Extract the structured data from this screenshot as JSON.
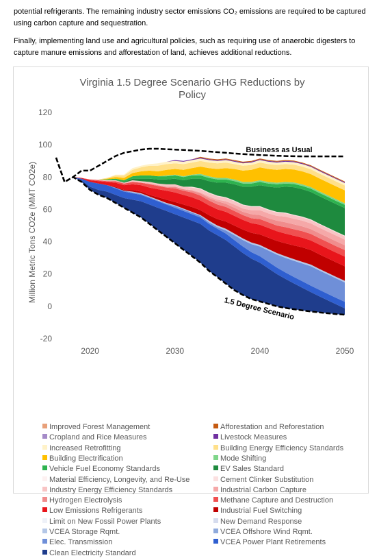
{
  "text": {
    "paragraph1": "potential refrigerants. The remaining industry sector emissions CO₂ emissions are required to be captured using carbon capture and sequestration.",
    "paragraph2": "Finally, implementing land use and agricultural policies, such as requiring use of anaerobic digesters to capture manure emissions and afforestation of land, achieves additional reductions."
  },
  "chart_data": {
    "type": "area",
    "title": "Virginia 1.5 Degree Scenario GHG Reductions by Policy",
    "ylabel": "Million Metric Tons CO2e (MMT CO2e)",
    "xlabel": "",
    "xlim": [
      2016,
      2050
    ],
    "ylim": [
      -20,
      120
    ],
    "xticks": [
      "2020",
      "2030",
      "2040",
      "2050"
    ],
    "yticks": [
      "120",
      "100",
      "80",
      "60",
      "40",
      "20",
      "0",
      "-20"
    ],
    "grid": false,
    "legend_position": "bottom",
    "annotations": [
      "Business as Usual",
      "1.5 Degree Scenario"
    ],
    "x": [
      2016,
      2017,
      2018,
      2019,
      2020,
      2021,
      2022,
      2023,
      2024,
      2025,
      2026,
      2027,
      2028,
      2029,
      2030,
      2031,
      2032,
      2033,
      2034,
      2035,
      2036,
      2037,
      2038,
      2039,
      2040,
      2041,
      2042,
      2043,
      2044,
      2045,
      2046,
      2047,
      2048,
      2049,
      2050
    ],
    "business_as_usual": [
      92,
      77,
      80,
      84,
      84,
      87,
      90,
      93,
      95,
      96,
      97,
      97.5,
      97.5,
      97.2,
      97,
      96.8,
      96.5,
      96.2,
      95.8,
      95.4,
      95,
      94.6,
      94.2,
      93.9,
      93.6,
      93.4,
      93.2,
      93,
      92.9,
      92.8,
      92.8,
      92.8,
      92.8,
      92.8,
      92.8
    ],
    "scenario_1_5_degree": [
      92,
      77,
      80,
      77,
      72,
      69,
      67,
      64,
      61,
      58,
      55,
      51,
      47,
      43,
      39,
      35,
      31,
      27,
      22,
      18,
      14,
      10,
      7,
      4.5,
      3,
      1.5,
      0,
      -1,
      -1.8,
      -2.5,
      -3.2,
      -3.8,
      -4.3,
      -4.8,
      -5.2
    ],
    "series": [
      {
        "name": "Clean Electricity Standard",
        "color": "#1f3d8c",
        "values": [
          0,
          0,
          0,
          1,
          2,
          3,
          4,
          5,
          6,
          8,
          10,
          12,
          14,
          16,
          18,
          20,
          22,
          24,
          25,
          26,
          27,
          27,
          26,
          25,
          24,
          22,
          20,
          18,
          16,
          14,
          12,
          10,
          8,
          6,
          4
        ]
      },
      {
        "name": "VCEA Power Plant Retirements",
        "color": "#2f5fd0",
        "values": [
          0,
          0,
          0,
          1,
          3,
          4,
          4,
          4,
          4,
          4,
          4,
          4,
          4,
          4,
          4,
          4,
          4,
          4,
          4,
          4,
          4,
          4,
          4,
          4,
          4,
          4,
          4,
          4,
          4,
          4,
          4,
          4,
          4,
          4,
          4
        ]
      },
      {
        "name": "Elec. Transmission",
        "color": "#6f8fd8",
        "values": [
          0,
          0,
          0,
          0,
          0,
          0,
          0,
          0.5,
          0.5,
          0.5,
          0.5,
          0.5,
          0.5,
          0.5,
          1,
          1,
          1,
          1,
          1,
          1,
          2,
          3,
          4,
          5,
          6,
          7,
          8,
          9,
          10,
          11,
          12,
          12,
          12,
          12,
          12
        ]
      },
      {
        "name": "VCEA Offshore Wind Rqmt.",
        "color": "#8faadc",
        "values": [
          0,
          0,
          0,
          0,
          0,
          0,
          0,
          0,
          0,
          0,
          0,
          0,
          0,
          0,
          0,
          0,
          0,
          0,
          0,
          0,
          0,
          0,
          0,
          0,
          0,
          0,
          0,
          0,
          0,
          0,
          0,
          0,
          0,
          0,
          0
        ]
      },
      {
        "name": "VCEA Storage Rqmt.",
        "color": "#b4c7e7",
        "values": [
          0,
          0,
          0,
          0,
          0,
          0,
          0,
          0,
          0,
          0.5,
          0.5,
          0.5,
          0.5,
          0.5,
          0.5,
          0.5,
          0.5,
          0.5,
          1,
          1,
          1,
          1,
          1,
          1,
          1,
          1,
          1,
          1,
          1,
          1,
          1,
          1,
          1,
          1,
          1
        ]
      },
      {
        "name": "New Demand Response",
        "color": "#d6dcee",
        "values": [
          0,
          0,
          0,
          0,
          0,
          0,
          0,
          0,
          0,
          0,
          0,
          0,
          0,
          0,
          0,
          0,
          0,
          0,
          0,
          0,
          0,
          0,
          0,
          0,
          0,
          0,
          0,
          0,
          0,
          0,
          0,
          0,
          0,
          0,
          0
        ]
      },
      {
        "name": "Limit on New Fossil Power Plants",
        "color": "#eef1f8",
        "values": [
          0,
          0,
          0,
          0,
          0,
          0,
          0,
          0,
          0,
          0,
          0,
          0,
          0,
          0,
          0,
          0,
          0,
          0,
          0,
          0,
          0,
          0,
          0,
          0,
          0,
          0,
          0,
          0,
          0,
          0,
          0,
          0,
          0,
          0,
          0
        ]
      },
      {
        "name": "Industrial Fuel Switching",
        "color": "#c00000",
        "values": [
          0,
          0,
          0,
          0,
          0,
          0,
          0,
          0.5,
          0.5,
          1,
          1,
          1,
          1.5,
          2,
          2,
          2.5,
          3,
          3,
          3.5,
          4,
          4.5,
          5,
          5.5,
          6,
          6.5,
          7,
          7.5,
          8,
          8.5,
          9,
          9,
          9,
          9,
          9,
          9
        ]
      },
      {
        "name": "Low Emissions Refrigerants",
        "color": "#e8151b",
        "values": [
          0,
          0,
          0,
          0.5,
          1,
          1.5,
          2,
          2.5,
          3,
          3.5,
          4,
          4.5,
          5,
          5.5,
          6,
          6,
          6,
          6,
          6,
          6,
          6,
          6,
          6,
          6,
          6,
          6,
          6,
          6,
          6,
          6,
          6,
          6,
          6,
          6,
          6
        ]
      },
      {
        "name": "Methane Capture and Destruction",
        "color": "#f05050",
        "values": [
          0,
          0,
          0,
          0,
          0.5,
          0.5,
          0.5,
          1,
          1,
          1.5,
          1.5,
          2,
          2,
          2,
          2.5,
          2.5,
          3,
          3,
          3,
          3,
          3,
          3,
          3,
          3,
          3.5,
          3.5,
          3.5,
          4,
          4,
          4,
          4,
          4,
          4,
          4,
          4
        ]
      },
      {
        "name": "Hydrogen Electrolysis",
        "color": "#f08c8c",
        "values": [
          0,
          0,
          0,
          0,
          0,
          0,
          0,
          0,
          0,
          0,
          0,
          0.5,
          0.5,
          0.5,
          1,
          1,
          1,
          1.5,
          1.5,
          2,
          2,
          2,
          2,
          2.5,
          2.5,
          2.5,
          3,
          3,
          3,
          3,
          3,
          3,
          3,
          3,
          3
        ]
      },
      {
        "name": "Industrial Carbon Capture",
        "color": "#f5a8a8",
        "values": [
          0,
          0,
          0,
          0,
          0,
          0,
          0,
          0,
          0,
          0,
          0,
          0,
          0,
          0,
          0,
          0,
          0.5,
          0.5,
          1,
          1,
          1.5,
          2,
          2,
          2.5,
          3,
          3,
          3,
          3.5,
          3.5,
          3.5,
          3.5,
          3.5,
          3.5,
          3.5,
          3.5
        ]
      },
      {
        "name": "Industry Energy Efficiency Standards",
        "color": "#f8c4c4",
        "values": [
          0,
          0,
          0,
          0,
          0,
          0.5,
          0.5,
          0.5,
          0.5,
          1,
          1,
          1,
          1,
          1.5,
          1.5,
          1.5,
          1.5,
          2,
          2,
          2,
          2,
          2,
          2,
          2,
          2,
          2,
          2,
          2,
          2,
          2,
          2,
          2,
          2,
          2,
          2
        ]
      },
      {
        "name": "Cement Clinker Substitution",
        "color": "#fbe0e0",
        "values": [
          0,
          0,
          0,
          0,
          0,
          0,
          0,
          0,
          0,
          0,
          0,
          0,
          0,
          0,
          0,
          0,
          0.5,
          0.5,
          0.5,
          0.5,
          0.5,
          0.5,
          0.5,
          0.5,
          0.5,
          0.5,
          0.5,
          0.5,
          0.5,
          0.5,
          0.5,
          0.5,
          0.5,
          0.5,
          0.5
        ]
      },
      {
        "name": "Material Efficiency, Longevity, and Re-Use",
        "color": "#fdf1f1",
        "values": [
          0,
          0,
          0,
          0,
          0,
          0,
          0,
          0,
          0,
          0,
          0,
          0,
          0,
          0,
          0,
          0,
          0,
          0,
          0,
          0,
          0,
          0,
          0,
          0,
          0,
          0,
          0,
          0,
          0,
          0,
          0,
          0,
          0,
          0,
          0
        ]
      },
      {
        "name": "EV Sales Standard",
        "color": "#1e8a3e",
        "values": [
          0,
          0,
          0,
          0,
          0,
          0,
          0,
          0,
          0.5,
          1,
          1.5,
          2,
          2.5,
          3,
          3.5,
          4,
          5,
          6,
          7,
          8,
          9,
          10,
          11,
          12,
          13,
          14,
          15,
          16,
          17,
          17,
          17,
          17,
          17,
          17,
          17
        ]
      },
      {
        "name": "Vehicle Fuel Economy Standards",
        "color": "#2eb34f",
        "values": [
          0,
          0,
          0,
          0,
          0,
          0,
          0.5,
          1,
          1,
          1.5,
          2,
          2,
          2,
          2,
          2,
          2,
          2,
          2,
          2,
          2,
          2,
          2,
          2,
          2,
          2,
          2,
          2,
          2,
          2,
          2,
          2,
          2,
          2,
          2,
          2
        ]
      },
      {
        "name": "Mode Shifting",
        "color": "#7fd68a",
        "values": [
          0,
          0,
          0,
          0,
          0,
          0,
          0,
          0,
          0,
          0,
          0,
          0,
          0,
          0.5,
          0.5,
          0.5,
          0.5,
          1,
          1,
          1,
          1,
          1,
          1,
          1,
          1,
          1,
          1,
          1,
          1,
          1,
          1,
          1,
          1,
          1,
          1
        ]
      },
      {
        "name": "Building Electrification",
        "color": "#ffc000",
        "values": [
          0,
          0,
          0,
          0,
          0,
          0,
          0.5,
          1,
          1.5,
          2,
          2.5,
          3,
          3,
          3.5,
          3.5,
          4,
          4,
          4.5,
          5,
          5.5,
          6,
          6.5,
          7,
          7.5,
          8,
          8,
          8,
          8,
          8,
          8,
          8,
          8,
          8,
          8,
          8
        ]
      },
      {
        "name": "Building Energy Efficiency Standards",
        "color": "#ffe08a",
        "values": [
          0,
          0,
          0,
          0,
          0,
          0,
          0.5,
          1,
          1.5,
          2,
          2.5,
          3,
          3.5,
          3.5,
          3.5,
          3.5,
          3.5,
          3.5,
          3.5,
          3.5,
          3.5,
          3,
          3,
          3,
          3,
          3,
          3,
          3,
          3,
          3,
          3,
          3,
          3,
          3,
          3
        ]
      },
      {
        "name": "Increased Retrofitting",
        "color": "#fff2c8",
        "values": [
          0,
          0,
          0,
          0,
          0,
          0,
          0,
          0.5,
          0.5,
          1,
          1,
          1,
          1.5,
          1.5,
          1.5,
          1.5,
          1.5,
          1.5,
          1.5,
          1.5,
          1.5,
          1.5,
          1.5,
          1.5,
          1.5,
          1.5,
          1.5,
          1.5,
          1.5,
          1.5,
          1.5,
          1.5,
          1.5,
          1.5,
          1.5
        ]
      },
      {
        "name": "Livestock Measures",
        "color": "#7030a0",
        "values": [
          0,
          0,
          0,
          0,
          0,
          0,
          0,
          0,
          0,
          0,
          0,
          0,
          0,
          0,
          0.5,
          0.5,
          0.5,
          0.5,
          0.5,
          0.5,
          0.5,
          0.5,
          0.5,
          0.5,
          0.5,
          0.5,
          0.5,
          0.5,
          0.5,
          0.5,
          0.5,
          0.5,
          0.5,
          0.5,
          0.5
        ]
      },
      {
        "name": "Cropland and Rice Measures",
        "color": "#a58bc8",
        "values": [
          0,
          0,
          0,
          0,
          0,
          0,
          0,
          0,
          0,
          0,
          0,
          0,
          0,
          0,
          0,
          0,
          0,
          0,
          0,
          0,
          0,
          0,
          0,
          0,
          0,
          0,
          0,
          0,
          0,
          0,
          0,
          0,
          0,
          0,
          0
        ]
      },
      {
        "name": "Afforestation and Reforestation",
        "color": "#c55a11",
        "values": [
          0,
          0,
          0,
          0,
          0,
          0,
          0,
          0,
          0,
          0,
          0,
          0,
          0,
          0,
          0,
          0,
          0,
          0.5,
          0.5,
          0.5,
          0.5,
          0.5,
          0.5,
          0.5,
          0.5,
          0.5,
          0.5,
          0.5,
          0.5,
          0.5,
          0.5,
          0.5,
          0.5,
          0.5,
          0.5
        ]
      },
      {
        "name": "Improved Forest Management",
        "color": "#e8a07a",
        "values": [
          0,
          0,
          0,
          0,
          0,
          0,
          0,
          0,
          0,
          0,
          0,
          0,
          0,
          0,
          0,
          0,
          0,
          0,
          0,
          0,
          0,
          0,
          0,
          0,
          0,
          0,
          0,
          0,
          0,
          0,
          0,
          0,
          0,
          0,
          0
        ]
      }
    ],
    "legend": [
      {
        "name": "Improved Forest Management",
        "color": "#e8a07a"
      },
      {
        "name": "Afforestation and Reforestation",
        "color": "#c55a11"
      },
      {
        "name": "Cropland and Rice Measures",
        "color": "#a58bc8"
      },
      {
        "name": "Livestock Measures",
        "color": "#7030a0"
      },
      {
        "name": "Increased Retrofitting",
        "color": "#fff2c8"
      },
      {
        "name": "Building Energy Efficiency Standards",
        "color": "#ffe08a"
      },
      {
        "name": "Building Electrification",
        "color": "#ffc000"
      },
      {
        "name": "Mode Shifting",
        "color": "#7fd68a"
      },
      {
        "name": "Vehicle Fuel Economy Standards",
        "color": "#2eb34f"
      },
      {
        "name": "EV Sales Standard",
        "color": "#1e8a3e"
      },
      {
        "name": "Material Efficiency, Longevity, and Re-Use",
        "color": "#fdf1f1"
      },
      {
        "name": "Cement Clinker Substitution",
        "color": "#fbe0e0"
      },
      {
        "name": "Industry Energy Efficiency Standards",
        "color": "#f8c4c4"
      },
      {
        "name": "Industrial Carbon Capture",
        "color": "#f5a8a8"
      },
      {
        "name": "Hydrogen Electrolysis",
        "color": "#f08c8c"
      },
      {
        "name": "Methane Capture and Destruction",
        "color": "#f05050"
      },
      {
        "name": "Low Emissions Refrigerants",
        "color": "#e8151b"
      },
      {
        "name": "Industrial Fuel Switching",
        "color": "#c00000"
      },
      {
        "name": "Limit on New Fossil Power Plants",
        "color": "#eef1f8"
      },
      {
        "name": "New Demand Response",
        "color": "#d6dcee"
      },
      {
        "name": "VCEA Storage Rqmt.",
        "color": "#b4c7e7"
      },
      {
        "name": "VCEA Offshore Wind Rqmt.",
        "color": "#8faadc"
      },
      {
        "name": "Elec. Transmission",
        "color": "#6f8fd8"
      },
      {
        "name": "VCEA Power Plant Retirements",
        "color": "#2f5fd0"
      },
      {
        "name": "Clean Electricity Standard",
        "color": "#1f3d8c"
      }
    ]
  }
}
